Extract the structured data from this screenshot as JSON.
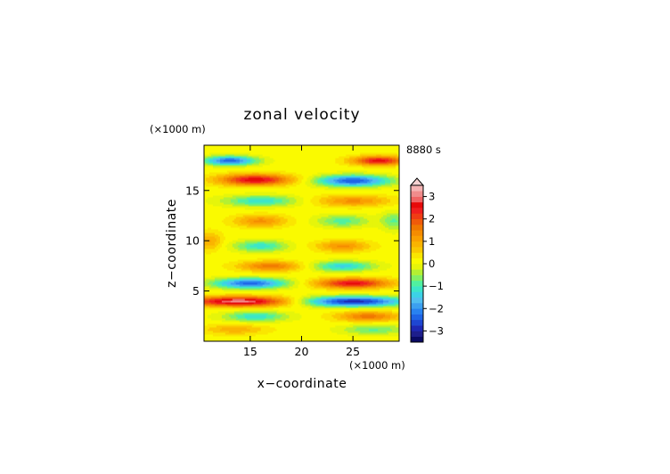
{
  "chart_data": {
    "type": "heatmap",
    "title": "zonal velocity",
    "xlabel": "x−coordinate",
    "ylabel": "z−coordinate",
    "x_unit": "(×1000 m)",
    "y_unit": "(×1000 m)",
    "time_label": "8880 s",
    "xlim": [
      10.5,
      29.5
    ],
    "ylim": [
      0,
      19.5
    ],
    "x_ticks": [
      "15",
      "20",
      "25"
    ],
    "y_ticks": [
      "5",
      "10",
      "15"
    ],
    "colorbar": {
      "levels": [
        -3.5,
        -3.25,
        -3,
        -2.75,
        -2.5,
        -2.25,
        -2,
        -1.75,
        -1.5,
        -1.25,
        -1,
        -0.75,
        -0.5,
        -0.25,
        0,
        0.25,
        0.5,
        0.75,
        1,
        1.25,
        1.5,
        1.75,
        2,
        2.25,
        2.5,
        2.75,
        3,
        3.25,
        3.5
      ],
      "tick_labels": [
        "3",
        "2",
        "1",
        "0",
        "−1",
        "−2",
        "−3"
      ],
      "tick_values": [
        3,
        2,
        1,
        0,
        -1,
        -2,
        -3
      ],
      "colors": [
        "#0a0a64",
        "#1e1e8c",
        "#1e28b4",
        "#1e46d2",
        "#1e64e6",
        "#2882f0",
        "#3ca0f0",
        "#50bef0",
        "#3cd2e6",
        "#3ce6c8",
        "#50f0a0",
        "#82f064",
        "#b4f032",
        "#e6f50a",
        "#fafa00",
        "#fae600",
        "#fac800",
        "#fab400",
        "#faa000",
        "#f58c00",
        "#f07800",
        "#f05a0a",
        "#f03c14",
        "#f01e1e",
        "#e60a0a",
        "#f06464",
        "#f08c8c",
        "#f5b4b4"
      ],
      "extend": "max"
    },
    "field_features": [
      {
        "x": 13.0,
        "z": 18.0,
        "value": -2.5,
        "sx": 2.5,
        "sz": 0.45
      },
      {
        "x": 27.5,
        "z": 18.0,
        "value": 2.5,
        "sx": 2.5,
        "sz": 0.45
      },
      {
        "x": 15.5,
        "z": 16.1,
        "value": 2.6,
        "sx": 3.5,
        "sz": 0.55
      },
      {
        "x": 25.0,
        "z": 16.0,
        "value": -2.6,
        "sx": 3.5,
        "sz": 0.55
      },
      {
        "x": 16.0,
        "z": 14.0,
        "value": -1.3,
        "sx": 3.5,
        "sz": 0.55
      },
      {
        "x": 25.0,
        "z": 14.0,
        "value": 1.2,
        "sx": 3.5,
        "sz": 0.55
      },
      {
        "x": 16.0,
        "z": 12.0,
        "value": 1.2,
        "sx": 2.5,
        "sz": 0.6
      },
      {
        "x": 24.0,
        "z": 12.0,
        "value": -1.0,
        "sx": 2.5,
        "sz": 0.6
      },
      {
        "x": 16.0,
        "z": 9.5,
        "value": -1.3,
        "sx": 2.5,
        "sz": 0.55
      },
      {
        "x": 24.0,
        "z": 9.5,
        "value": 1.2,
        "sx": 2.5,
        "sz": 0.55
      },
      {
        "x": 17.0,
        "z": 7.5,
        "value": 1.5,
        "sx": 3.0,
        "sz": 0.5
      },
      {
        "x": 24.0,
        "z": 7.5,
        "value": -1.5,
        "sx": 3.0,
        "sz": 0.5
      },
      {
        "x": 15.0,
        "z": 5.8,
        "value": -2.5,
        "sx": 3.5,
        "sz": 0.5
      },
      {
        "x": 25.0,
        "z": 5.8,
        "value": 2.5,
        "sx": 3.5,
        "sz": 0.5
      },
      {
        "x": 14.0,
        "z": 4.0,
        "value": 3.0,
        "sx": 5.0,
        "sz": 0.5
      },
      {
        "x": 25.0,
        "z": 4.0,
        "value": -3.0,
        "sx": 5.0,
        "sz": 0.5
      },
      {
        "x": 15.5,
        "z": 2.5,
        "value": -1.3,
        "sx": 3.0,
        "sz": 0.5
      },
      {
        "x": 26.5,
        "z": 2.5,
        "value": 1.5,
        "sx": 3.0,
        "sz": 0.5
      },
      {
        "x": 13.5,
        "z": 1.2,
        "value": 0.8,
        "sx": 3.0,
        "sz": 0.5
      },
      {
        "x": 27.0,
        "z": 1.2,
        "value": -0.9,
        "sx": 3.0,
        "sz": 0.5
      },
      {
        "x": 11.0,
        "z": 10.0,
        "value": 0.9,
        "sx": 1.2,
        "sz": 0.9
      },
      {
        "x": 29.0,
        "z": 12.0,
        "value": -0.9,
        "sx": 1.2,
        "sz": 0.9
      }
    ]
  }
}
